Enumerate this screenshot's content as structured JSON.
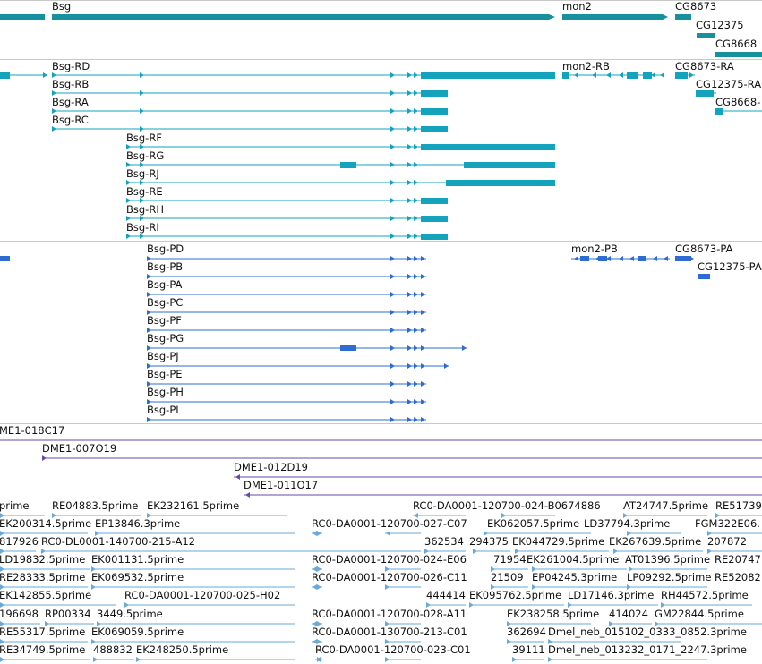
{
  "colors": {
    "gene": "#17919e",
    "mrna": "#13a3bd",
    "protein": "#2e6cd1",
    "clone": "#6a4aa8",
    "est": "#6aa9d8",
    "separator": "#c9c9c9"
  },
  "tracks": {
    "genes": [
      {
        "label": "Bsg",
        "span": [
          0.0,
          0.066,
          0.57,
          0.735
        ]
      },
      {
        "label": "mon2",
        "span": [
          0.735,
          0.887
        ]
      },
      {
        "label": "CG8673",
        "span": [
          0.887,
          0.935
        ]
      },
      {
        "label": "CG12375",
        "span": [
          0.914,
          0.94
        ]
      },
      {
        "label": "CG8668",
        "span": [
          0.94,
          1.0
        ]
      }
    ],
    "transcripts": [
      "Bsg-RD",
      "Bsg-RB",
      "Bsg-RA",
      "Bsg-RC",
      "Bsg-RF",
      "Bsg-RG",
      "Bsg-RJ",
      "Bsg-RE",
      "Bsg-RH",
      "Bsg-RI",
      "mon2-RB",
      "CG8673-RA",
      "CG12375-RA",
      "CG8668-"
    ],
    "proteins": [
      "Bsg-PD",
      "Bsg-PB",
      "Bsg-PA",
      "Bsg-PC",
      "Bsg-PF",
      "Bsg-PG",
      "Bsg-PJ",
      "Bsg-PE",
      "Bsg-PH",
      "Bsg-PI",
      "mon2-PB",
      "CG8673-PA",
      "CG12375-PA"
    ],
    "clones": [
      "ME1-018C17",
      "DME1-007O19",
      "DME1-012D19",
      "DME1-011O17"
    ],
    "ests": [
      "prime",
      "RE04883.5prime",
      "EK232161.5prime",
      "RC0-DA0001-120700-024-B0674886",
      "AT24747.5prime",
      "RE51739",
      "EK200314.5prime",
      "EP13846.3prime",
      "RC0-DA0001-120700-027-C07",
      "EK062057.5prime",
      "LD37794.3prime",
      "FGM322E06.",
      "817926",
      "RC0-DL0001-140700-215-A12",
      "362534",
      "294375",
      "EK044729.5prime",
      "EK267639.5prime",
      "207872",
      "LD19832.5prime",
      "EK001131.5prime",
      "RC0-DA0001-120700-024-E06",
      "71954",
      "EK261004.5prime",
      "AT01396.5prime",
      "RE20747",
      "RE28333.5prime",
      "EK069532.5prime",
      "RC0-DA0001-120700-026-C11",
      "21509",
      "EP04245.3prime",
      "LP09292.5prime",
      "RE52082",
      "EK142855.5prime",
      "RC0-DA0001-120700-025-H02",
      "444414",
      "EK095762.5prime",
      "LD17146.3prime",
      "RH44572.5prime",
      "196698",
      "RP00334",
      "3449.5prime",
      "RC0-DA0001-120700-028-A11",
      "EK238258.5prime",
      "414024",
      "GM22844.5prime",
      "RE55317.5prime",
      "EK069059.5prime",
      "RC0-DA0001-130700-213-C01",
      "362694",
      "Dmel_neb_015102_0333_0852.3prime",
      "RE34749.5prime",
      "488832",
      "EK248250.5prime",
      "RC0-DA0001-120700-023-C01",
      "39111",
      "Dmel_neb_013232_0171_2247.3prime"
    ]
  }
}
